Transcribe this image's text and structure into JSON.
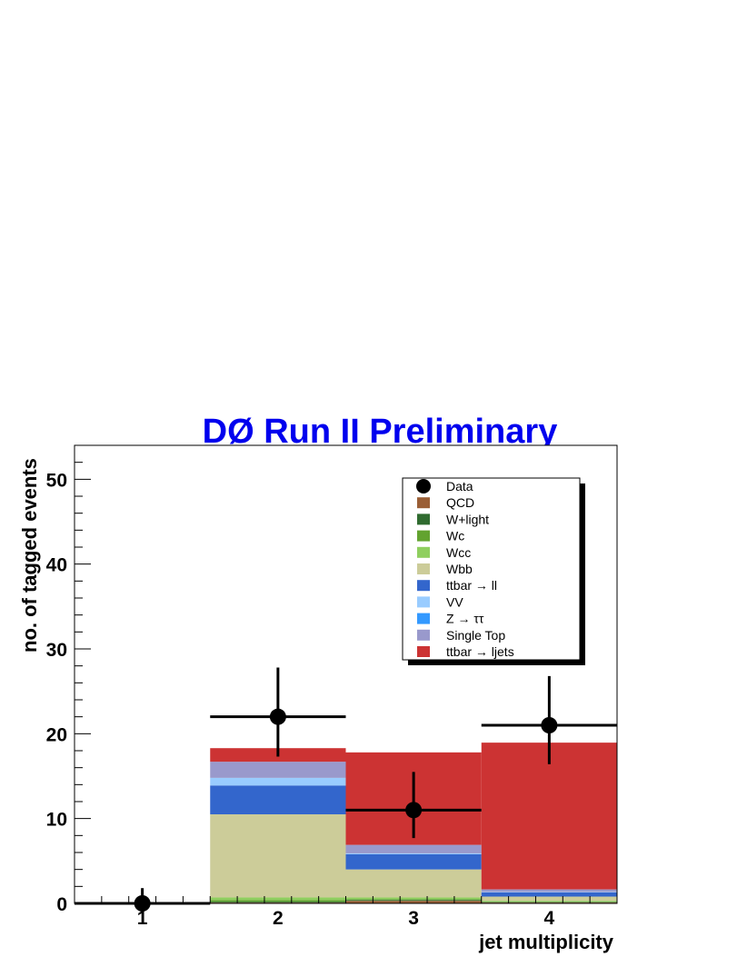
{
  "chart_data": {
    "type": "bar",
    "stacked": true,
    "title": "DØ Run II Preliminary",
    "xlabel": "jet multiplicity",
    "ylabel": "no. of tagged events",
    "xlim": [
      0.5,
      4.5
    ],
    "ylim": [
      0,
      54
    ],
    "x_ticks": [
      "1",
      "2",
      "3",
      "4"
    ],
    "y_ticks": [
      "0",
      "10",
      "20",
      "30",
      "40",
      "50"
    ],
    "grid": false,
    "legend_position": "top-right",
    "bins": [
      1,
      2,
      3,
      4
    ],
    "series": [
      {
        "name": "QCD",
        "color": "#9a5e35",
        "values": [
          0,
          0.1,
          0.3,
          0.1
        ]
      },
      {
        "name": "W+light",
        "color": "#2f6b2f",
        "values": [
          0,
          0.1,
          0.1,
          0.05
        ]
      },
      {
        "name": "Wc",
        "color": "#62a32f",
        "values": [
          0,
          0.2,
          0.1,
          0.05
        ]
      },
      {
        "name": "Wcc",
        "color": "#8fcf5f",
        "values": [
          0,
          0.3,
          0.2,
          0.1
        ]
      },
      {
        "name": "Wbb",
        "color": "#cccc99",
        "values": [
          0,
          9.8,
          3.3,
          0.5
        ]
      },
      {
        "name": "ttbar → ll",
        "color": "#3366cc",
        "values": [
          0,
          3.4,
          1.8,
          0.5
        ]
      },
      {
        "name": "VV",
        "color": "#99ccff",
        "values": [
          0,
          0.9,
          0.1,
          0.05
        ]
      },
      {
        "name": "Z → ττ",
        "color": "#3399ff",
        "values": [
          0,
          0.0,
          0.0,
          0.0
        ]
      },
      {
        "name": "Single Top",
        "color": "#9999cc",
        "values": [
          0,
          1.9,
          1.0,
          0.3
        ]
      },
      {
        "name": "ttbar → ljets",
        "color": "#cc3333",
        "values": [
          0,
          1.6,
          10.9,
          17.3
        ]
      }
    ],
    "data_points": {
      "name": "Data",
      "x": [
        1,
        2,
        3,
        4
      ],
      "y": [
        0,
        22,
        11,
        21
      ],
      "yerr_low": [
        0,
        4.7,
        3.3,
        4.6
      ],
      "yerr_high": [
        1.8,
        5.8,
        4.5,
        5.8
      ]
    }
  }
}
